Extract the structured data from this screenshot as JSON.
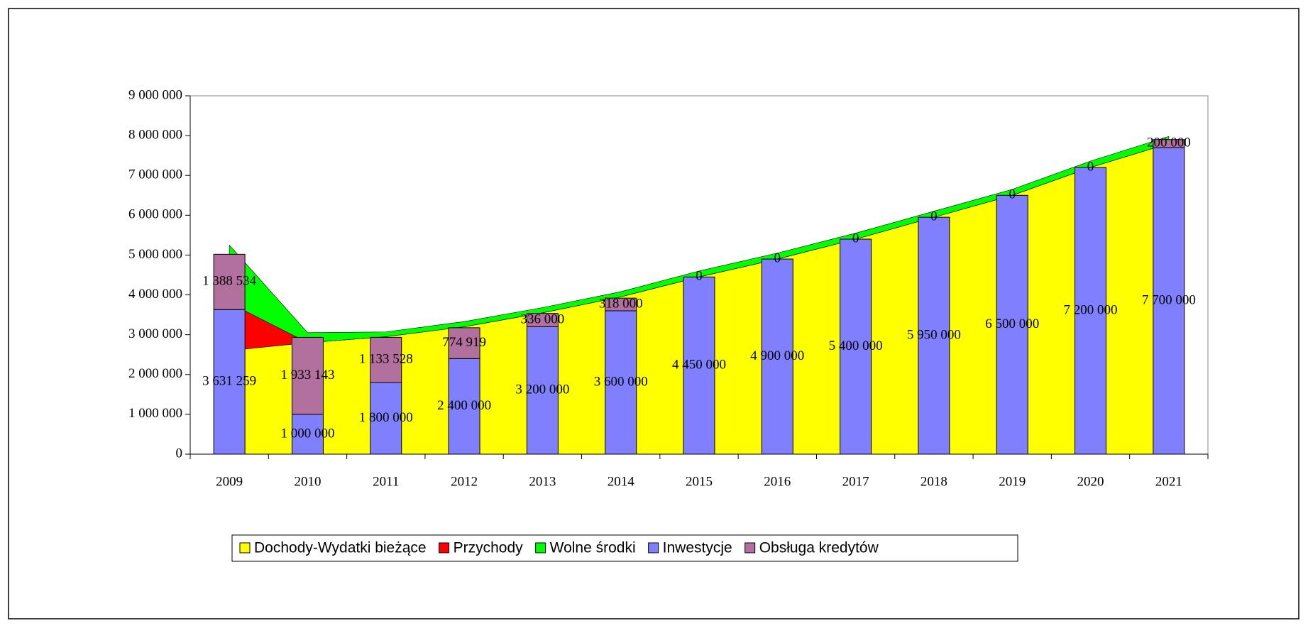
{
  "chart_data": {
    "type": "combo",
    "categories": [
      "2009",
      "2010",
      "2011",
      "2012",
      "2013",
      "2014",
      "2015",
      "2016",
      "2017",
      "2018",
      "2019",
      "2020",
      "2021"
    ],
    "ylim": [
      0,
      9000000
    ],
    "yticks": [
      0,
      {
        "value": 1000000,
        "label": "1 000 000"
      },
      {
        "value": 2000000,
        "label": "2 000 000"
      },
      {
        "value": 3000000,
        "label": "3 000 000"
      },
      {
        "value": 4000000,
        "label": "4 000 000"
      },
      {
        "value": 5000000,
        "label": "5 000 000"
      },
      {
        "value": 6000000,
        "label": "6 000 000"
      },
      {
        "value": 7000000,
        "label": "7 000 000"
      },
      {
        "value": 8000000,
        "label": "8 000 000"
      },
      {
        "value": 9000000,
        "label": "9 000 000"
      }
    ],
    "series": [
      {
        "name": "Dochody-Wydatki bieżące",
        "type": "area",
        "color": "#ffff00",
        "values": [
          2600000,
          2800000,
          2950000,
          3200000,
          3550000,
          3950000,
          4450000,
          4900000,
          5400000,
          5950000,
          6500000,
          7200000,
          7800000
        ]
      },
      {
        "name": "Przychody",
        "type": "area",
        "color": "#ff0000",
        "values": [
          1200000,
          0,
          0,
          0,
          0,
          0,
          0,
          0,
          0,
          0,
          0,
          0,
          0
        ]
      },
      {
        "name": "Wolne środki",
        "type": "area",
        "color": "#00ff00",
        "values": [
          1450000,
          250000,
          120000,
          130000,
          130000,
          130000,
          150000,
          150000,
          150000,
          150000,
          150000,
          160000,
          180000
        ]
      },
      {
        "name": "Inwestycje",
        "type": "bar",
        "color": "#8080ff",
        "values": [
          3631259,
          1000000,
          1800000,
          2400000,
          3200000,
          3600000,
          4450000,
          4900000,
          5400000,
          5950000,
          6500000,
          7200000,
          7700000
        ],
        "value_labels": [
          "3 631 259",
          "1 000 000",
          "1 800 000",
          "2 400 000",
          "3 200 000",
          "3 600 000",
          "4 450 000",
          "4 900 000",
          "5 400 000",
          "5 950 000",
          "6 500 000",
          "7 200 000",
          "7 700 000"
        ]
      },
      {
        "name": "Obsługa kredytów",
        "type": "bar",
        "color": "#b2709e",
        "values": [
          1388534,
          1933143,
          1133528,
          774919,
          336000,
          318000,
          0,
          0,
          0,
          0,
          0,
          0,
          200000
        ],
        "value_labels": [
          "1 388 534",
          "1 933 143",
          "1 133 528",
          "774 919",
          "336 000",
          "318 000",
          "0",
          "0",
          "0",
          "0",
          "0",
          "0",
          "200 000"
        ]
      }
    ]
  }
}
